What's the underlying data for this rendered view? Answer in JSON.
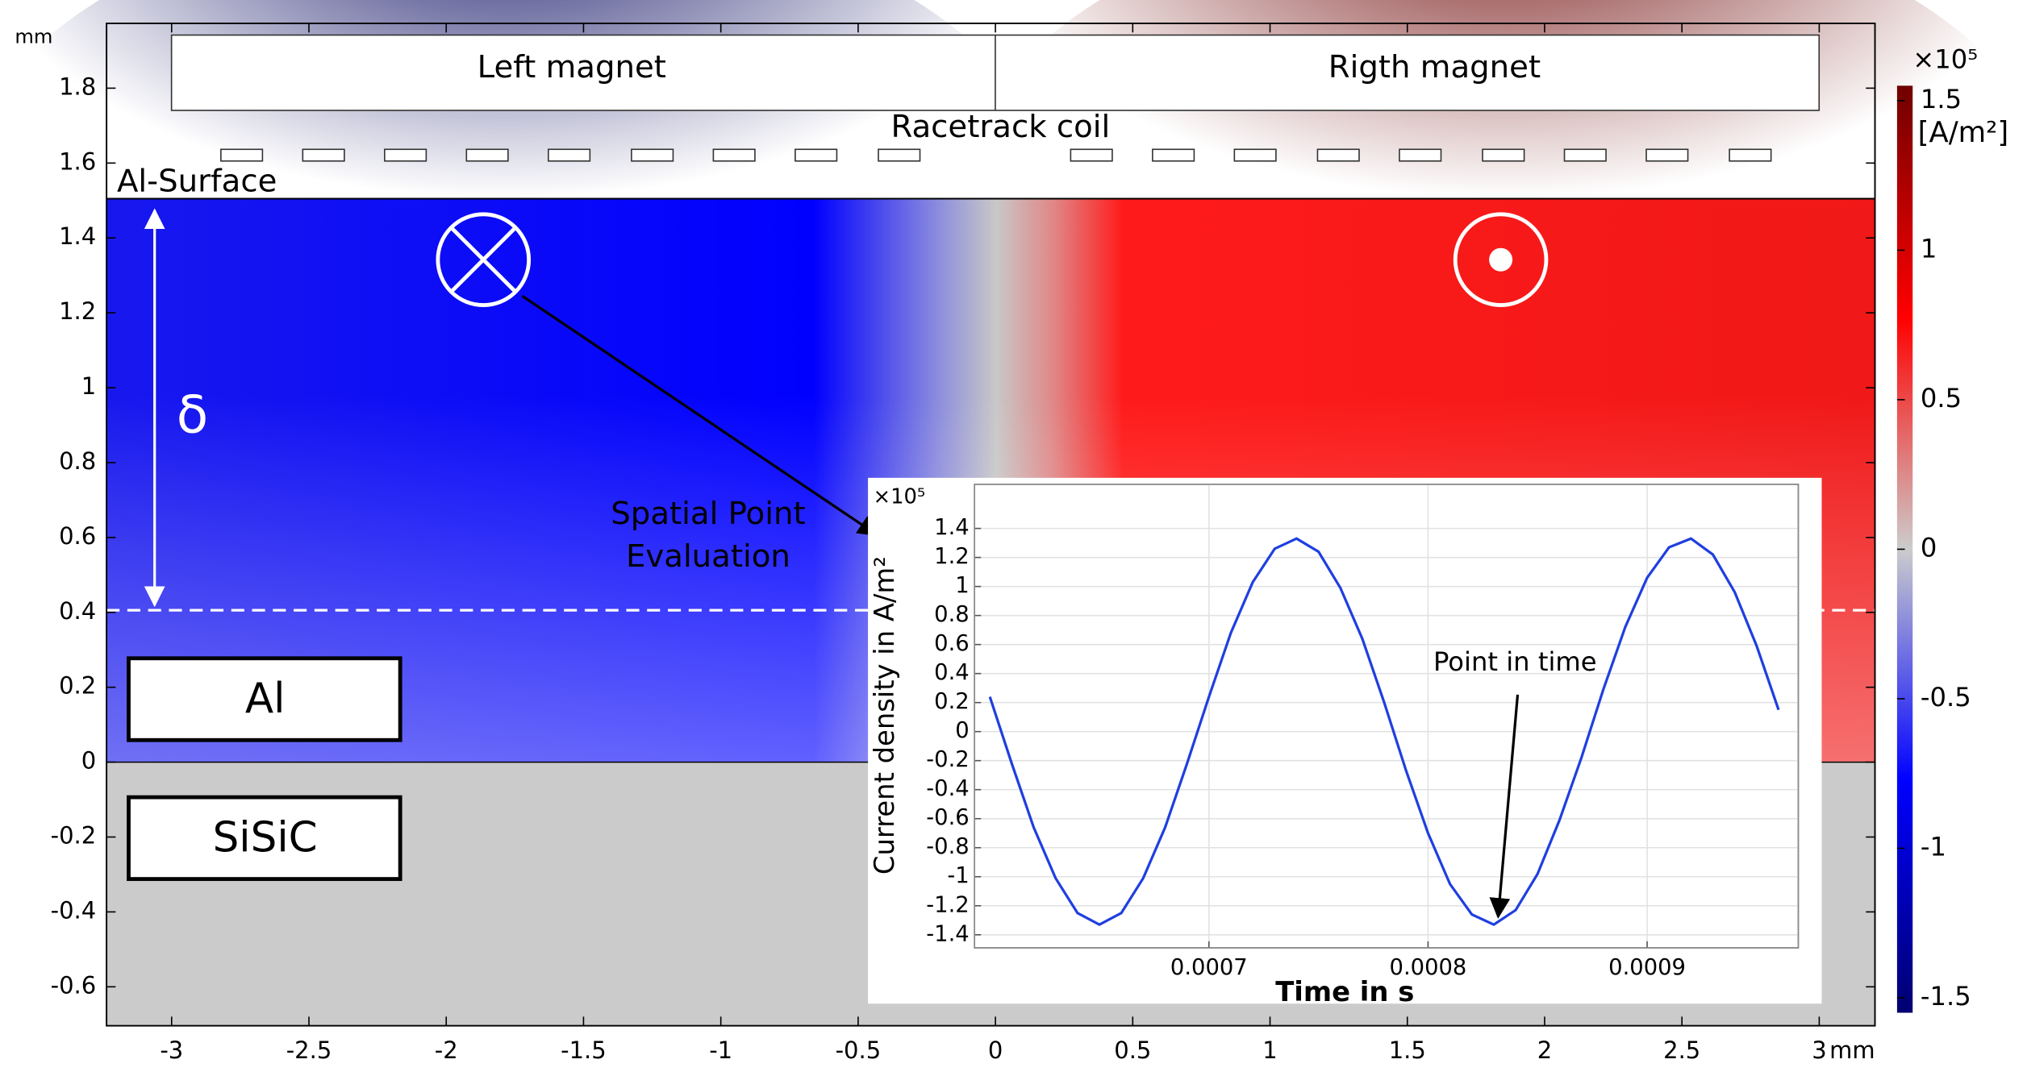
{
  "chart_data": [
    {
      "type": "surface",
      "xlabel": "mm",
      "ylabel": "mm",
      "xlim": [
        -3.237,
        3.203
      ],
      "ylim": [
        -0.704,
        1.973
      ],
      "xticks": [
        -3,
        -2.5,
        -2,
        -1.5,
        -1,
        -0.5,
        0,
        0.5,
        1,
        1.5,
        2,
        2.5,
        3
      ],
      "yticks": [
        -0.6,
        -0.4,
        -0.2,
        0,
        0.2,
        0.4,
        0.6,
        0.8,
        1,
        1.2,
        1.4,
        1.6,
        1.8
      ],
      "colorbar": {
        "label": "[A/m²]",
        "multiplier": "×10⁵",
        "clim": [
          -1.55,
          1.55
        ],
        "ticks": [
          -1.5,
          -1,
          -0.5,
          0,
          0.5,
          1,
          1.5
        ]
      },
      "labels": {
        "left_magnet": "Left magnet",
        "right_magnet": "Rigth magnet",
        "coil": "Racetrack coil",
        "surface": "Al-Surface",
        "depth": "δ",
        "al": "Al",
        "sisic": "SiSiC",
        "evaluation": [
          "Spatial Point",
          "Evaluation"
        ]
      }
    },
    {
      "type": "line",
      "xlabel": "Time in s",
      "ylabel": "Current density in A/m²",
      "multiplier": "×10⁵",
      "annotation": "Point in time",
      "color": "#1f3fe0",
      "grid": true,
      "xlim": [
        0.000593,
        0.000969
      ],
      "ylim": [
        -1.49,
        1.704
      ],
      "xticks": [
        0.0007,
        0.0008,
        0.0009
      ],
      "yticks": [
        -1.4,
        -1.2,
        -1,
        -0.8,
        -0.6,
        -0.4,
        -0.2,
        0,
        0.2,
        0.4,
        0.6,
        0.8,
        1,
        1.2,
        1.4
      ],
      "x": [
        0.0006,
        0.00061,
        0.00062,
        0.00063,
        0.00064,
        0.00065,
        0.00066,
        0.00067,
        0.00068,
        0.00069,
        0.0007,
        0.00071,
        0.00072,
        0.00073,
        0.00074,
        0.00075,
        0.00076,
        0.00077,
        0.00078,
        0.00079,
        0.0008,
        0.00081,
        0.00082,
        0.00083,
        0.00084,
        0.00085,
        0.00086,
        0.00087,
        0.00088,
        0.00089,
        0.0009,
        0.00091,
        0.00092,
        0.00093,
        0.00094,
        0.00095,
        0.00096
      ],
      "values": [
        0.24,
        -0.22,
        -0.66,
        -1.01,
        -1.25,
        -1.33,
        -1.25,
        -1.01,
        -0.66,
        -0.22,
        0.24,
        0.68,
        1.03,
        1.26,
        1.33,
        1.24,
        0.99,
        0.64,
        0.2,
        -0.27,
        -0.7,
        -1.05,
        -1.26,
        -1.33,
        -1.23,
        -0.98,
        -0.61,
        -0.18,
        0.29,
        0.72,
        1.06,
        1.27,
        1.33,
        1.22,
        0.96,
        0.59,
        0.15
      ]
    }
  ]
}
